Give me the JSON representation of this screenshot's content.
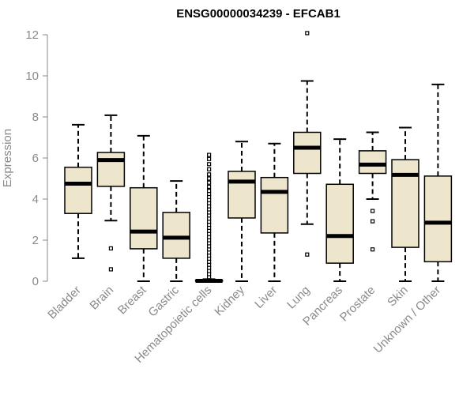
{
  "chart_data": {
    "type": "boxplot",
    "title": "ENSG00000034239 - EFCAB1",
    "xlabel": "",
    "ylabel": "Expression",
    "ylim": [
      0,
      12
    ],
    "yticks": [
      0,
      2,
      4,
      6,
      8,
      10,
      12
    ],
    "grid": false,
    "box_fill": "#ede6cc",
    "stroke_color": "#000000",
    "axis_color": "#8a8a8a",
    "categories": [
      "Bladder",
      "Brain",
      "Breast",
      "Gastric",
      "Hematopoietic cells",
      "Kidney",
      "Liver",
      "Lung",
      "Pancreas",
      "Prostate",
      "Skin",
      "Unknown / Other"
    ],
    "boxes": [
      {
        "name": "Bladder",
        "whisker_low": 1.12,
        "q1": 3.3,
        "median": 4.75,
        "q3": 5.55,
        "whisker_high": 7.62,
        "outliers": []
      },
      {
        "name": "Brain",
        "whisker_low": 2.95,
        "q1": 4.62,
        "median": 5.9,
        "q3": 6.27,
        "whisker_high": 8.08,
        "outliers": [
          1.6,
          0.58
        ]
      },
      {
        "name": "Breast",
        "whisker_low": 0.0,
        "q1": 1.58,
        "median": 2.42,
        "q3": 4.55,
        "whisker_high": 7.08,
        "outliers": []
      },
      {
        "name": "Gastric",
        "whisker_low": 0.0,
        "q1": 1.12,
        "median": 2.12,
        "q3": 3.35,
        "whisker_high": 4.88,
        "outliers": []
      },
      {
        "name": "Hematopoietic cells",
        "whisker_low": 0.0,
        "q1": 0.0,
        "median": 0.02,
        "q3": 0.05,
        "whisker_high": 0.1,
        "outliers": [
          0.2,
          0.35,
          0.5,
          0.65,
          0.8,
          0.95,
          1.1,
          1.25,
          1.4,
          1.55,
          1.7,
          1.85,
          2.0,
          2.15,
          2.3,
          2.45,
          2.6,
          2.75,
          2.9,
          3.05,
          3.2,
          3.35,
          3.5,
          3.65,
          3.8,
          3.95,
          4.1,
          4.25,
          4.4,
          4.6,
          4.8,
          5.0,
          5.2,
          5.45,
          5.7,
          5.95,
          6.15
        ]
      },
      {
        "name": "Kidney",
        "whisker_low": 0.0,
        "q1": 3.08,
        "median": 4.85,
        "q3": 5.35,
        "whisker_high": 6.8,
        "outliers": []
      },
      {
        "name": "Liver",
        "whisker_low": 0.0,
        "q1": 2.35,
        "median": 4.35,
        "q3": 5.05,
        "whisker_high": 6.7,
        "outliers": []
      },
      {
        "name": "Lung",
        "whisker_low": 2.78,
        "q1": 5.25,
        "median": 6.5,
        "q3": 7.25,
        "whisker_high": 9.75,
        "outliers": [
          12.08,
          1.3
        ]
      },
      {
        "name": "Pancreas",
        "whisker_low": 0.0,
        "q1": 0.88,
        "median": 2.2,
        "q3": 4.72,
        "whisker_high": 6.92,
        "outliers": []
      },
      {
        "name": "Prostate",
        "whisker_low": 4.0,
        "q1": 5.25,
        "median": 5.68,
        "q3": 6.35,
        "whisker_high": 7.25,
        "outliers": [
          3.42,
          2.92,
          1.55
        ]
      },
      {
        "name": "Skin",
        "whisker_low": 0.0,
        "q1": 1.65,
        "median": 5.18,
        "q3": 5.92,
        "whisker_high": 7.48,
        "outliers": []
      },
      {
        "name": "Unknown / Other",
        "whisker_low": 0.0,
        "q1": 0.95,
        "median": 2.85,
        "q3": 5.12,
        "whisker_high": 9.58,
        "outliers": []
      }
    ]
  }
}
